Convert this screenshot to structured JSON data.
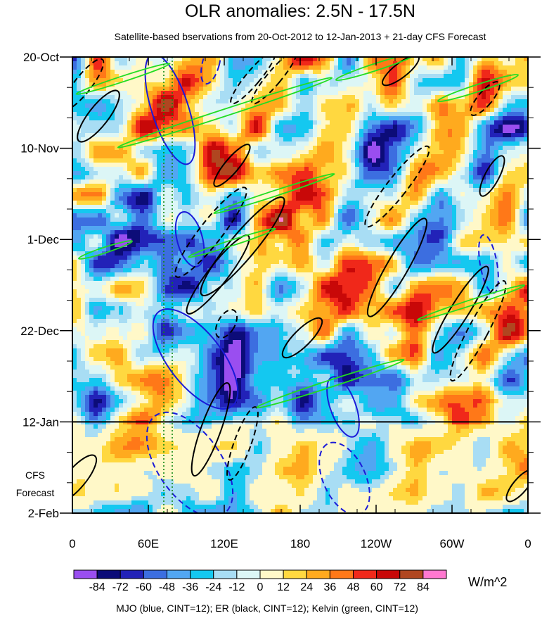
{
  "chart_data": {
    "type": "heatmap",
    "title": "OLR anomalies: 2.5N - 17.5N",
    "subtitle": "Satellite-based bservations from 20-Oct-2012 to 12-Jan-2013 + 21-day CFS Forecast",
    "x_ticks": [
      "0",
      "60E",
      "120E",
      "180",
      "120W",
      "60W",
      "0"
    ],
    "y_ticks": [
      "20-Oct",
      "10-Nov",
      "1-Dec",
      "22-Dec",
      "12-Jan",
      "2-Feb"
    ],
    "forecast_label": [
      "CFS",
      "Forecast"
    ],
    "colorbar": {
      "levels": [
        -84,
        -72,
        -60,
        -48,
        -36,
        -24,
        -12,
        0,
        12,
        24,
        36,
        48,
        60,
        72,
        84
      ],
      "label_text": [
        "-84",
        "-72",
        "-60",
        "-48",
        "-36",
        "-24",
        "-12",
        "0",
        "12",
        "24",
        "36",
        "48",
        "60",
        "72",
        "84"
      ],
      "colors": [
        "#9a4ef0",
        "#0c0c78",
        "#2222b8",
        "#3c6ee0",
        "#52a6f2",
        "#14c8f0",
        "#a8ddf4",
        "#dcf6f6",
        "#fff8c8",
        "#ffd840",
        "#ffaa1e",
        "#ff7818",
        "#f0281a",
        "#c80808",
        "#b04620",
        "#ff78d0"
      ],
      "unit": "W/m^2"
    },
    "contour_legend": "MJO (blue, CINT=12); ER (black, CINT=12); Kelvin (green, CINT=12)",
    "contour_colors": {
      "MJO": "#1a1ad8",
      "ER": "#000000",
      "Kelvin": "#22dd22"
    },
    "forecast_start": "12-Jan"
  }
}
